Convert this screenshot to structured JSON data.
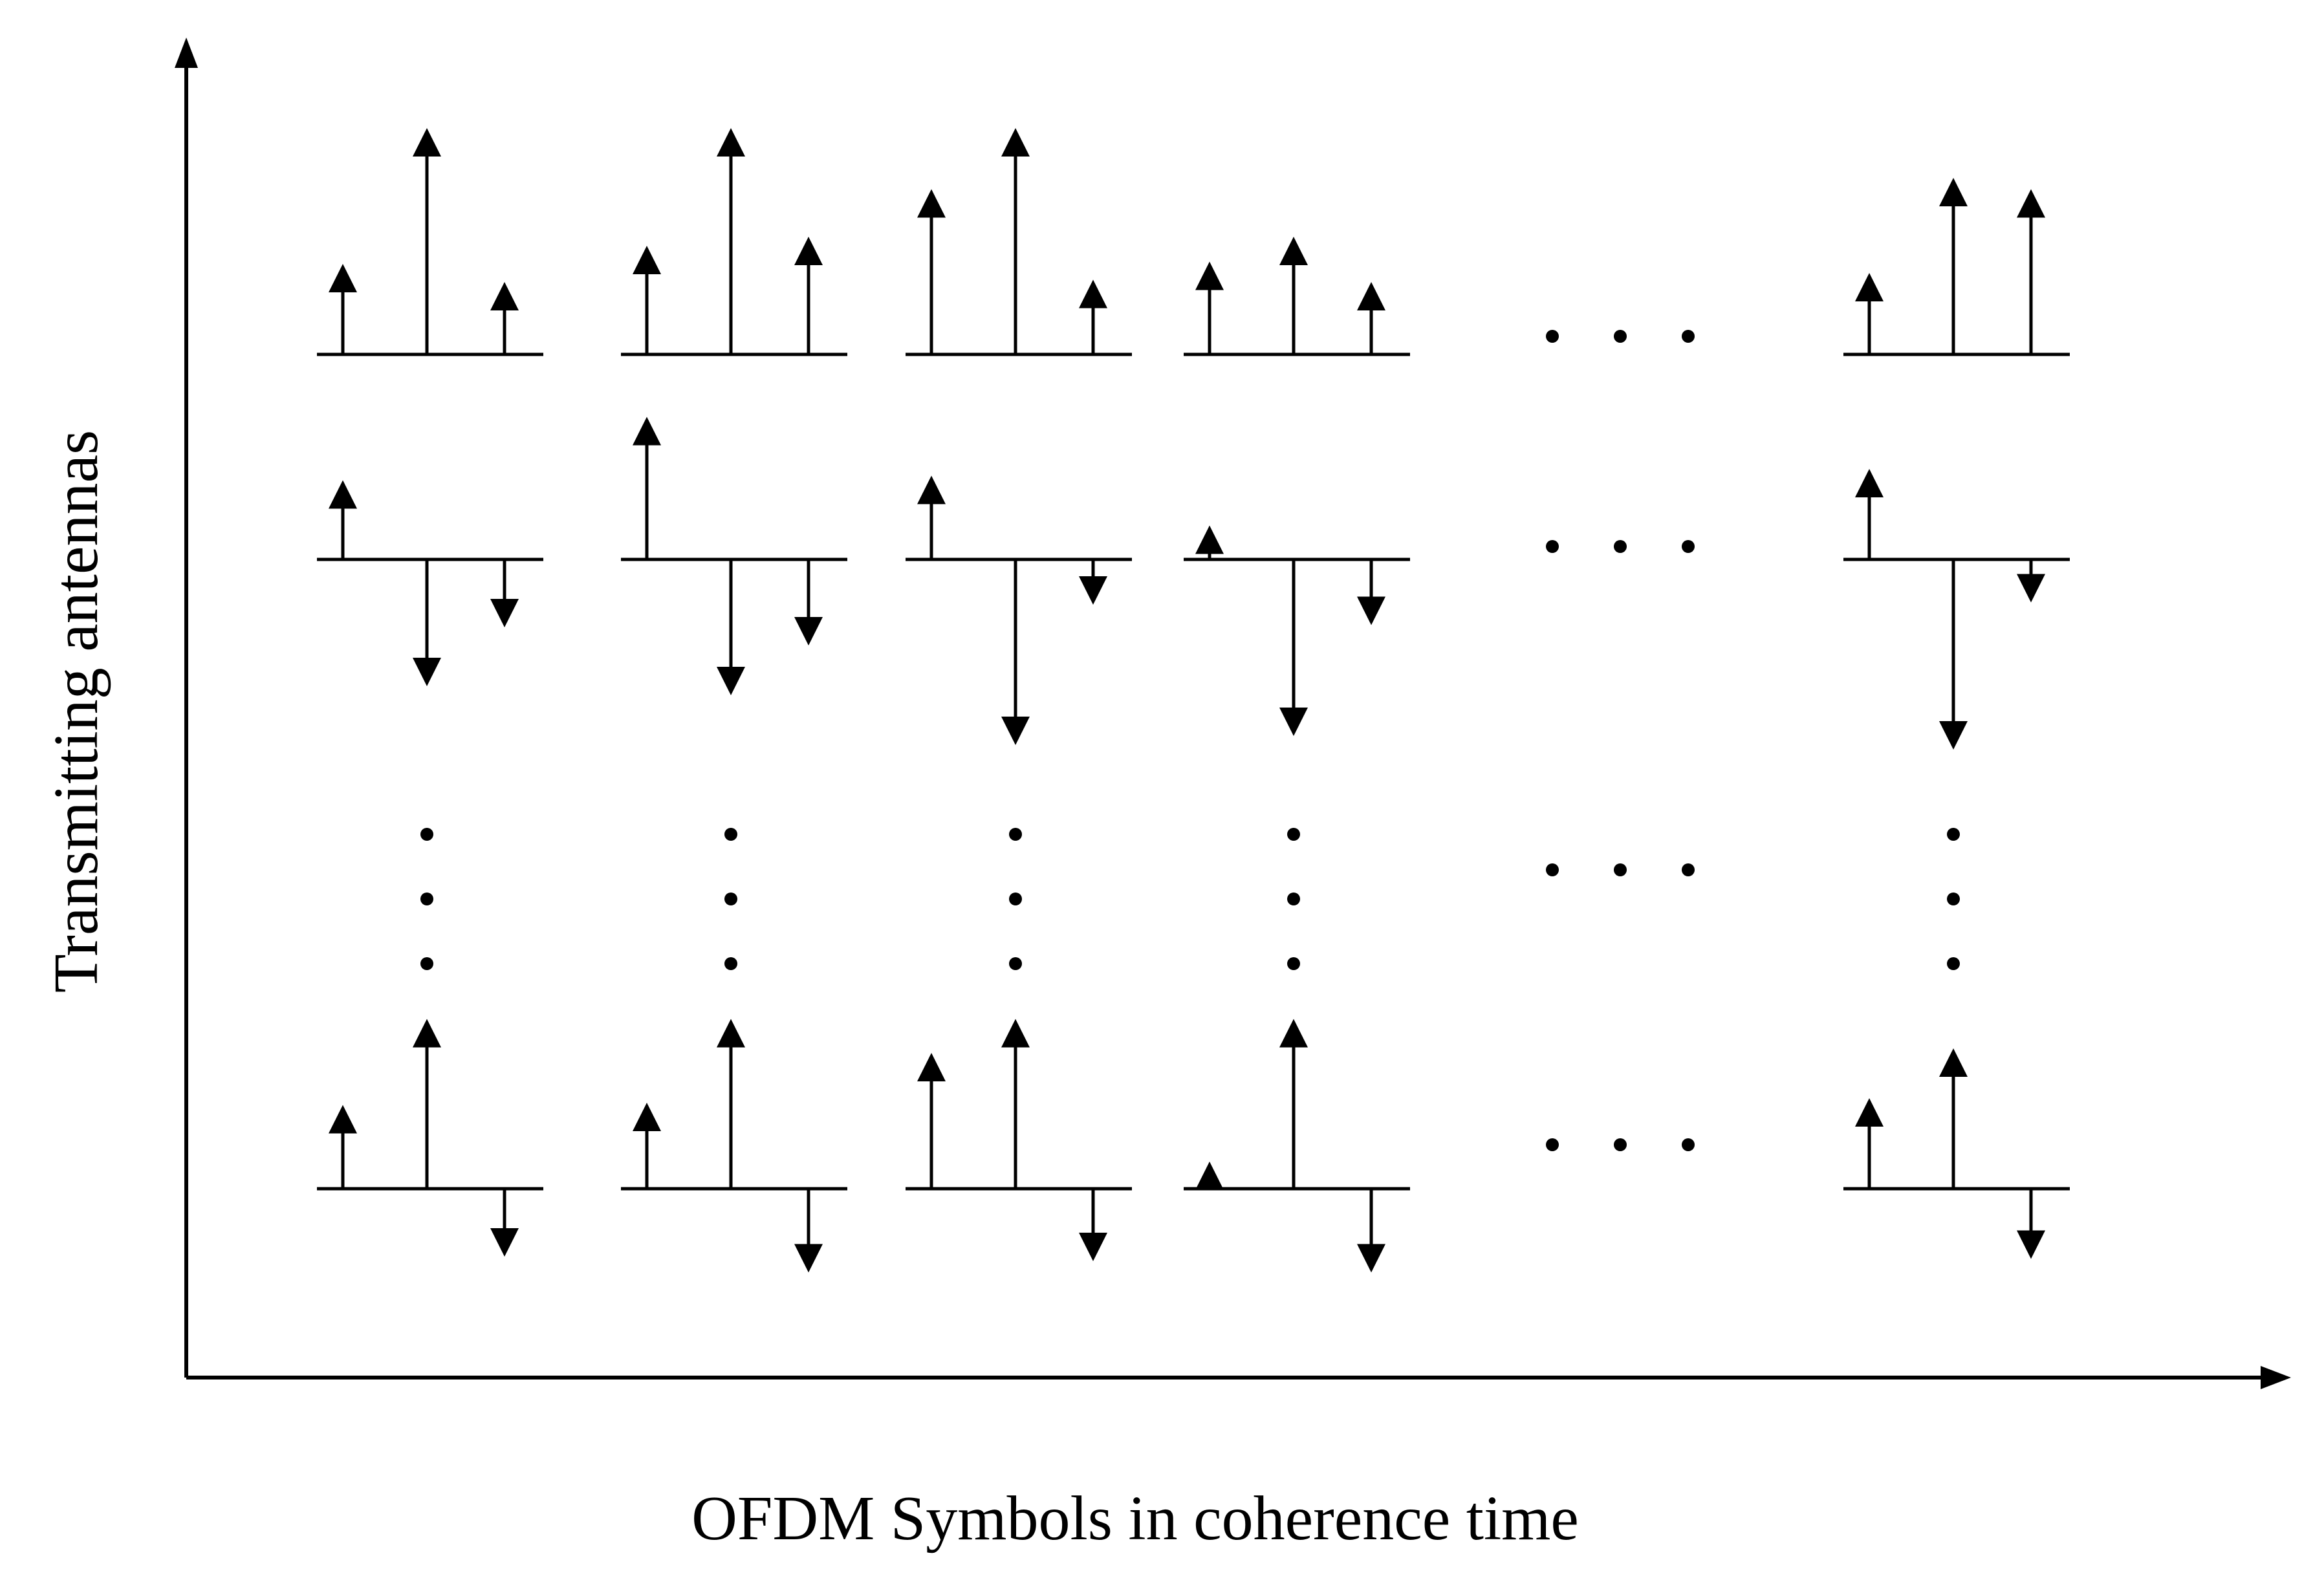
{
  "diagram": {
    "xlabel": "OFDM Symbols in coherence time",
    "ylabel": "Transmitting antennas",
    "stroke_color": "#000000",
    "rows": [
      {
        "name": "antenna-row-1",
        "cells": [
          {
            "type": "stems",
            "values": [
              0.4,
              1.0,
              0.32
            ]
          },
          {
            "type": "stems",
            "values": [
              0.48,
              1.0,
              0.52
            ]
          },
          {
            "type": "stems",
            "values": [
              0.73,
              1.0,
              0.33
            ]
          },
          {
            "type": "stems",
            "values": [
              0.41,
              0.52,
              0.32
            ]
          },
          {
            "type": "ellipsis-horizontal"
          },
          {
            "type": "stems",
            "values": [
              0.36,
              0.78,
              0.73
            ]
          }
        ]
      },
      {
        "name": "antenna-row-2",
        "cells": [
          {
            "type": "stems",
            "values": [
              0.35,
              -0.56,
              -0.3
            ]
          },
          {
            "type": "stems",
            "values": [
              0.63,
              -0.6,
              -0.38
            ]
          },
          {
            "type": "stems",
            "values": [
              0.37,
              -0.82,
              -0.2
            ]
          },
          {
            "type": "stems",
            "values": [
              0.15,
              -0.78,
              -0.29
            ]
          },
          {
            "type": "ellipsis-horizontal"
          },
          {
            "type": "stems",
            "values": [
              0.4,
              -0.84,
              -0.19
            ]
          }
        ]
      },
      {
        "name": "antenna-row-dots",
        "cells": [
          {
            "type": "ellipsis-vertical"
          },
          {
            "type": "ellipsis-vertical"
          },
          {
            "type": "ellipsis-vertical"
          },
          {
            "type": "ellipsis-vertical"
          },
          {
            "type": "ellipsis-horizontal"
          },
          {
            "type": "ellipsis-vertical"
          }
        ]
      },
      {
        "name": "antenna-row-last",
        "cells": [
          {
            "type": "stems",
            "values": [
              0.37,
              0.75,
              -0.3
            ]
          },
          {
            "type": "stems",
            "values": [
              0.38,
              0.75,
              -0.37
            ]
          },
          {
            "type": "stems",
            "values": [
              0.6,
              0.75,
              -0.32
            ]
          },
          {
            "type": "stems",
            "values": [
              0.12,
              0.75,
              -0.37
            ]
          },
          {
            "type": "ellipsis-horizontal"
          },
          {
            "type": "stems",
            "values": [
              0.4,
              0.62,
              -0.31
            ]
          }
        ]
      }
    ]
  }
}
